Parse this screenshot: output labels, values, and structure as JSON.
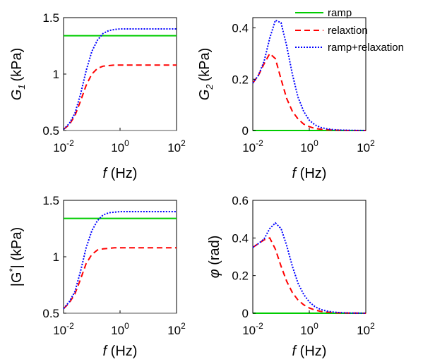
{
  "legend": [
    {
      "label": "ramp",
      "color": "#00cc00",
      "dash": "solid"
    },
    {
      "label": "relaxtion",
      "color": "#ff0000",
      "dash": "dashed"
    },
    {
      "label": "ramp+relaxation",
      "color": "#0000ff",
      "dash": "dotted"
    }
  ],
  "chart_data": [
    {
      "type": "line",
      "id": "g1",
      "xlabel_parts": [
        "f",
        "(Hz)"
      ],
      "ylabel_parts": [
        "G",
        "1",
        "(kPa)"
      ],
      "xscale": "log",
      "xlim": [
        0.01,
        100
      ],
      "ylim": [
        0.5,
        1.5
      ],
      "xticks": [
        {
          "base": "10",
          "exp": "-2"
        },
        {
          "base": "10",
          "exp": "0"
        },
        {
          "base": "10",
          "exp": "2"
        }
      ],
      "yticks": [
        "0.5",
        "1",
        "1.5"
      ],
      "ytick_values": [
        0.5,
        1,
        1.5
      ],
      "baseline": 0.5,
      "x": [
        0.01,
        0.0158,
        0.0251,
        0.0398,
        0.0631,
        0.1,
        0.158,
        0.251,
        0.398,
        0.631,
        1,
        1.58,
        2.51,
        3.98,
        6.31,
        10,
        25.1,
        100
      ],
      "series": [
        {
          "name": "ramp",
          "values": [
            1.34,
            1.34,
            1.34,
            1.34,
            1.34,
            1.34,
            1.34,
            1.34,
            1.34,
            1.34,
            1.34,
            1.34,
            1.34,
            1.34,
            1.34,
            1.34,
            1.34,
            1.34
          ]
        },
        {
          "name": "relaxtion",
          "values": [
            0.51,
            0.55,
            0.63,
            0.76,
            0.9,
            1.0,
            1.05,
            1.07,
            1.075,
            1.08,
            1.08,
            1.08,
            1.08,
            1.08,
            1.08,
            1.08,
            1.08,
            1.08
          ]
        },
        {
          "name": "ramp+relaxation",
          "values": [
            0.51,
            0.56,
            0.65,
            0.82,
            1.03,
            1.2,
            1.3,
            1.36,
            1.385,
            1.395,
            1.4,
            1.4,
            1.4,
            1.4,
            1.4,
            1.4,
            1.4,
            1.4
          ]
        }
      ]
    },
    {
      "type": "line",
      "id": "g2",
      "xlabel_parts": [
        "f",
        "(Hz)"
      ],
      "ylabel_parts": [
        "G",
        "2",
        "(kPa)"
      ],
      "xscale": "log",
      "xlim": [
        0.01,
        100
      ],
      "ylim": [
        0,
        0.44
      ],
      "xticks": [
        {
          "base": "10",
          "exp": "-2"
        },
        {
          "base": "10",
          "exp": "0"
        },
        {
          "base": "10",
          "exp": "2"
        }
      ],
      "yticks": [
        "0",
        "0.2",
        "0.4"
      ],
      "ytick_values": [
        0,
        0.2,
        0.4
      ],
      "x": [
        0.01,
        0.0158,
        0.0251,
        0.0398,
        0.0631,
        0.1,
        0.158,
        0.251,
        0.398,
        0.631,
        1,
        1.58,
        2.51,
        3.98,
        6.31,
        10,
        25.1,
        100
      ],
      "series": [
        {
          "name": "ramp",
          "values": [
            0,
            0,
            0,
            0,
            0,
            0,
            0,
            0,
            0,
            0,
            0,
            0,
            0,
            0,
            0,
            0,
            0,
            0
          ]
        },
        {
          "name": "relaxtion",
          "values": [
            0.185,
            0.215,
            0.26,
            0.3,
            0.28,
            0.2,
            0.125,
            0.075,
            0.045,
            0.025,
            0.015,
            0.008,
            0.005,
            0.003,
            0.002,
            0.001,
            0,
            0
          ]
        },
        {
          "name": "ramp+relaxation",
          "values": [
            0.185,
            0.215,
            0.27,
            0.36,
            0.43,
            0.42,
            0.33,
            0.22,
            0.13,
            0.075,
            0.04,
            0.022,
            0.012,
            0.007,
            0.004,
            0.002,
            0.001,
            0
          ]
        }
      ]
    },
    {
      "type": "line",
      "id": "gstar",
      "xlabel_parts": [
        "f",
        "(Hz)"
      ],
      "ylabel_parts": [
        "|G",
        "*",
        "| (kPa)"
      ],
      "xscale": "log",
      "xlim": [
        0.01,
        100
      ],
      "ylim": [
        0.5,
        1.5
      ],
      "xticks": [
        {
          "base": "10",
          "exp": "-2"
        },
        {
          "base": "10",
          "exp": "0"
        },
        {
          "base": "10",
          "exp": "2"
        }
      ],
      "yticks": [
        "0.5",
        "1",
        "1.5"
      ],
      "ytick_values": [
        0.5,
        1,
        1.5
      ],
      "baseline": 0.5,
      "x": [
        0.01,
        0.0158,
        0.0251,
        0.0398,
        0.0631,
        0.1,
        0.158,
        0.251,
        0.398,
        0.631,
        1,
        1.58,
        2.51,
        3.98,
        6.31,
        10,
        25.1,
        100
      ],
      "series": [
        {
          "name": "ramp",
          "values": [
            1.34,
            1.34,
            1.34,
            1.34,
            1.34,
            1.34,
            1.34,
            1.34,
            1.34,
            1.34,
            1.34,
            1.34,
            1.34,
            1.34,
            1.34,
            1.34,
            1.34,
            1.34
          ]
        },
        {
          "name": "relaxtion",
          "values": [
            0.54,
            0.59,
            0.67,
            0.8,
            0.94,
            1.02,
            1.06,
            1.07,
            1.075,
            1.08,
            1.08,
            1.08,
            1.08,
            1.08,
            1.08,
            1.08,
            1.08,
            1.08
          ]
        },
        {
          "name": "ramp+relaxation",
          "values": [
            0.54,
            0.6,
            0.69,
            0.87,
            1.08,
            1.23,
            1.32,
            1.37,
            1.39,
            1.395,
            1.4,
            1.4,
            1.4,
            1.4,
            1.4,
            1.4,
            1.4,
            1.4
          ]
        }
      ]
    },
    {
      "type": "line",
      "id": "phi",
      "xlabel_parts": [
        "f",
        "(Hz)"
      ],
      "ylabel_parts": [
        "φ",
        "(rad)"
      ],
      "xscale": "log",
      "xlim": [
        0.01,
        100
      ],
      "ylim": [
        0,
        0.6
      ],
      "xticks": [
        {
          "base": "10",
          "exp": "-2"
        },
        {
          "base": "10",
          "exp": "0"
        },
        {
          "base": "10",
          "exp": "2"
        }
      ],
      "yticks": [
        "0",
        "0.2",
        "0.4",
        "0.6"
      ],
      "ytick_values": [
        0,
        0.2,
        0.4,
        0.6
      ],
      "x": [
        0.01,
        0.0158,
        0.0251,
        0.0398,
        0.0631,
        0.1,
        0.158,
        0.251,
        0.398,
        0.631,
        1,
        1.58,
        2.51,
        3.98,
        6.31,
        10,
        25.1,
        100
      ],
      "series": [
        {
          "name": "ramp",
          "values": [
            0,
            0,
            0,
            0,
            0,
            0,
            0,
            0,
            0,
            0,
            0,
            0,
            0,
            0,
            0,
            0,
            0,
            0
          ]
        },
        {
          "name": "relaxtion",
          "values": [
            0.35,
            0.37,
            0.39,
            0.4,
            0.34,
            0.25,
            0.17,
            0.11,
            0.07,
            0.045,
            0.028,
            0.017,
            0.01,
            0.006,
            0.004,
            0.002,
            0.001,
            0
          ]
        },
        {
          "name": "ramp+relaxation",
          "values": [
            0.35,
            0.37,
            0.395,
            0.45,
            0.48,
            0.45,
            0.36,
            0.25,
            0.16,
            0.1,
            0.06,
            0.035,
            0.02,
            0.012,
            0.007,
            0.004,
            0.001,
            0
          ]
        }
      ]
    }
  ]
}
